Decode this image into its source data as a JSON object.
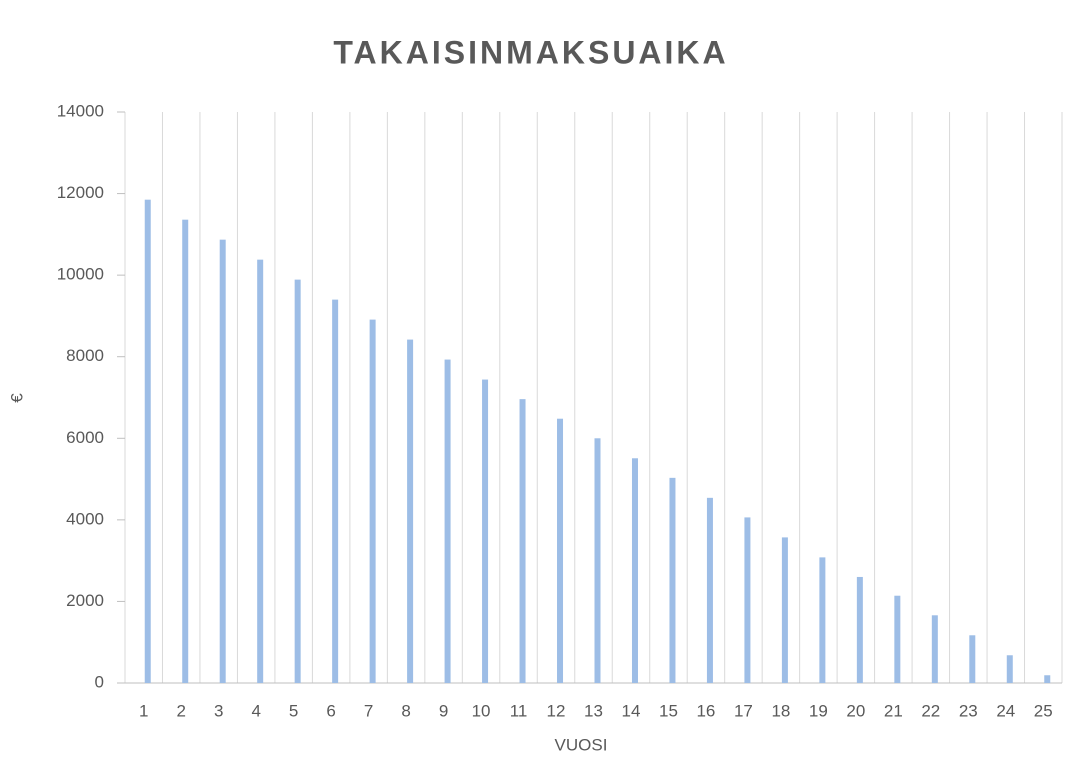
{
  "chart_data": {
    "type": "bar",
    "title": "TAKAISINMAKSUAIKA",
    "x_label": "VUOSI",
    "y_label": "€",
    "categories": [
      "1",
      "2",
      "3",
      "4",
      "5",
      "6",
      "7",
      "8",
      "9",
      "10",
      "11",
      "12",
      "13",
      "14",
      "15",
      "16",
      "17",
      "18",
      "19",
      "20",
      "21",
      "22",
      "23",
      "24",
      "25"
    ],
    "values": [
      11850,
      11360,
      10870,
      10380,
      9890,
      9400,
      8910,
      8420,
      7930,
      7440,
      6960,
      6480,
      6000,
      5510,
      5030,
      4540,
      4060,
      3570,
      3080,
      2600,
      2140,
      1660,
      1170,
      680,
      190
    ],
    "color": "#9dbde6",
    "ylim": [
      0,
      14000
    ],
    "yticks": [
      0,
      2000,
      4000,
      6000,
      8000,
      10000,
      12000,
      14000
    ],
    "grid": true
  }
}
